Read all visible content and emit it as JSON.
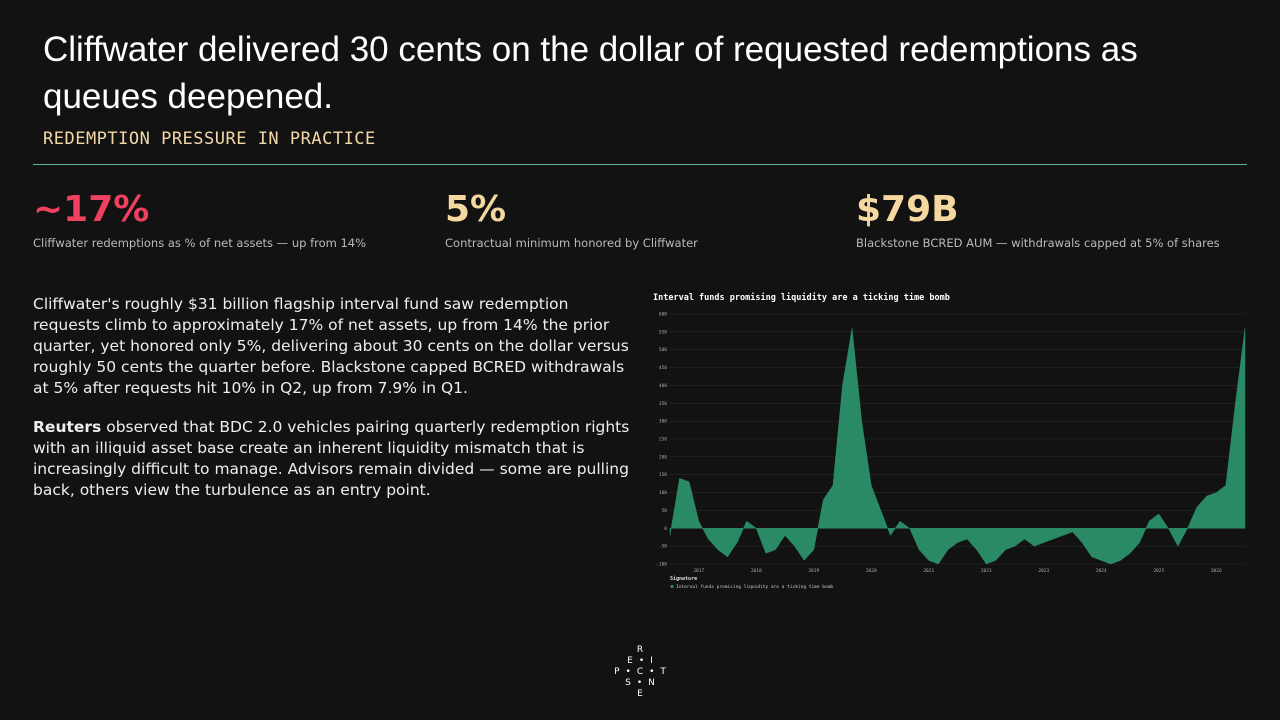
{
  "header": {
    "title": "Cliffwater delivered 30 cents on the dollar of requested redemptions as queues deepened.",
    "subtitle": "REDEMPTION PRESSURE IN PRACTICE"
  },
  "stats": [
    {
      "value": "~17%",
      "caption": "Cliffwater redemptions as % of net assets — up from 14%"
    },
    {
      "value": "5%",
      "caption": "Contractual minimum honored by Cliffwater"
    },
    {
      "value": "$79B",
      "caption": "Blackstone BCRED AUM — withdrawals capped at 5% of shares"
    }
  ],
  "body": {
    "paragraph1": "Cliffwater's roughly $31 billion flagship interval fund saw redemption requests climb to approximately 17% of net assets, up from 14% the prior quarter, yet honored only 5%, delivering about 30 cents on the dollar versus roughly 50 cents the quarter before. Blackstone capped BCRED withdrawals at 5% after requests hit 10% in Q2, up from 7.9% in Q1.",
    "paragraph2": {
      "bold": "Reuters",
      "text": " observed that BDC 2.0 vehicles pairing quarterly redemption rights with an illiquid asset base create an inherent liquidity mismatch that is increasingly difficult to manage. Advisors remain divided — some are pulling back, others view the turbulence as an entry point."
    }
  },
  "chart_data": {
    "type": "area",
    "title": "Interval funds promising liquidity are a ticking time bomb",
    "legend_title": "Signature",
    "categories": [
      null,
      null,
      null,
      "2017",
      null,
      null,
      null,
      null,
      null,
      "2018",
      null,
      null,
      null,
      null,
      null,
      "2019",
      null,
      null,
      null,
      null,
      null,
      "2020",
      null,
      null,
      null,
      null,
      null,
      "2021",
      null,
      null,
      null,
      null,
      null,
      "2021",
      null,
      null,
      null,
      null,
      null,
      "2023",
      null,
      null,
      null,
      null,
      null,
      "2024",
      null,
      null,
      null,
      null,
      null,
      "2025",
      null,
      null,
      null,
      null,
      null,
      "2026",
      null,
      null,
      null
    ],
    "series": [
      {
        "name": "Interval funds promising liquidity are a ticking time bomb",
        "color": "#2a8a66",
        "values": [
          -20,
          140,
          130,
          20,
          -30,
          -60,
          -80,
          -40,
          20,
          0,
          -70,
          -60,
          -20,
          -50,
          -90,
          -60,
          80,
          120,
          400,
          560,
          300,
          120,
          50,
          -20,
          20,
          0,
          -60,
          -90,
          -100,
          -60,
          -40,
          -30,
          -60,
          -100,
          -90,
          -60,
          -50,
          -30,
          -50,
          -40,
          -30,
          -20,
          -10,
          -40,
          -80,
          -90,
          -100,
          -90,
          -70,
          -40,
          20,
          40,
          0,
          -50,
          0,
          60,
          90,
          100,
          120,
          350,
          560
        ]
      }
    ],
    "ylim": [
      -100,
      600
    ],
    "yticks": [
      -100,
      -50,
      0,
      50,
      100,
      150,
      200,
      250,
      300,
      350,
      400,
      450,
      500,
      550,
      600
    ],
    "grid": true
  },
  "logo": {
    "rows": [
      [
        "R"
      ],
      [
        "E",
        "I"
      ],
      [
        "P",
        "C",
        "T"
      ],
      [
        "S",
        "N"
      ],
      [
        "E"
      ]
    ]
  }
}
